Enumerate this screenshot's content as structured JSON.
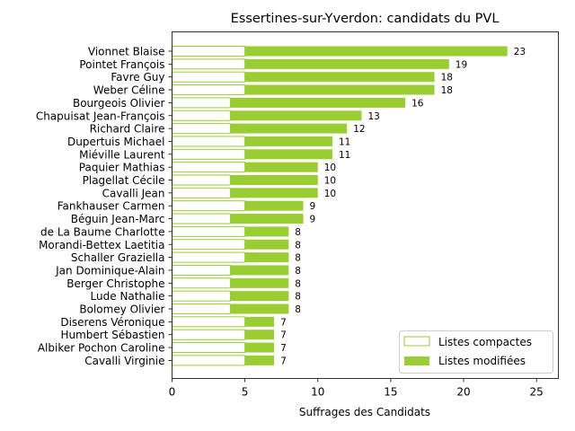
{
  "chart_data": {
    "type": "bar",
    "orientation": "horizontal",
    "stacked": true,
    "title": "Essertines-sur-Yverdon: candidats du PVL",
    "xlabel": "Suffrages des Candidats",
    "ylabel": "",
    "xlim": [
      0,
      26.5
    ],
    "xticks": [
      0,
      5,
      10,
      15,
      20,
      25
    ],
    "grid": false,
    "legend_position": "lower-right",
    "color": "#9acd32",
    "categories": [
      "Vionnet Blaise",
      "Pointet François",
      "Favre Guy",
      "Weber Céline",
      "Bourgeois Olivier",
      "Chapuisat Jean-François",
      "Richard Claire",
      "Dupertuis Michael",
      "Miéville Laurent",
      "Paquier Mathias",
      "Plagellat Cécile",
      "Cavalli Jean",
      "Fankhauser Carmen",
      "Béguin Jean-Marc",
      "de La Baume Charlotte",
      "Morandi-Bettex Laetitia",
      "Schaller Graziella",
      "Jan Dominique-Alain",
      "Berger Christophe",
      "Lude Nathalie",
      "Bolomey Olivier",
      "Diserens Véronique",
      "Humbert Sébastien",
      "Albiker Pochon Caroline",
      "Cavalli Virginie"
    ],
    "series": [
      {
        "name": "Listes compactes",
        "style": "outline",
        "values": [
          5,
          5,
          5,
          5,
          4,
          4,
          4,
          5,
          5,
          5,
          4,
          4,
          5,
          4,
          5,
          5,
          5,
          4,
          4,
          4,
          4,
          5,
          5,
          5,
          5
        ]
      },
      {
        "name": "Listes modifiées",
        "style": "filled",
        "values": [
          18,
          14,
          13,
          13,
          12,
          9,
          8,
          6,
          6,
          5,
          6,
          6,
          4,
          5,
          3,
          3,
          3,
          4,
          4,
          4,
          4,
          2,
          2,
          2,
          2
        ]
      }
    ],
    "totals": [
      23,
      19,
      18,
      18,
      16,
      13,
      12,
      11,
      11,
      10,
      10,
      10,
      9,
      9,
      8,
      8,
      8,
      8,
      8,
      8,
      8,
      7,
      7,
      7,
      7
    ]
  }
}
